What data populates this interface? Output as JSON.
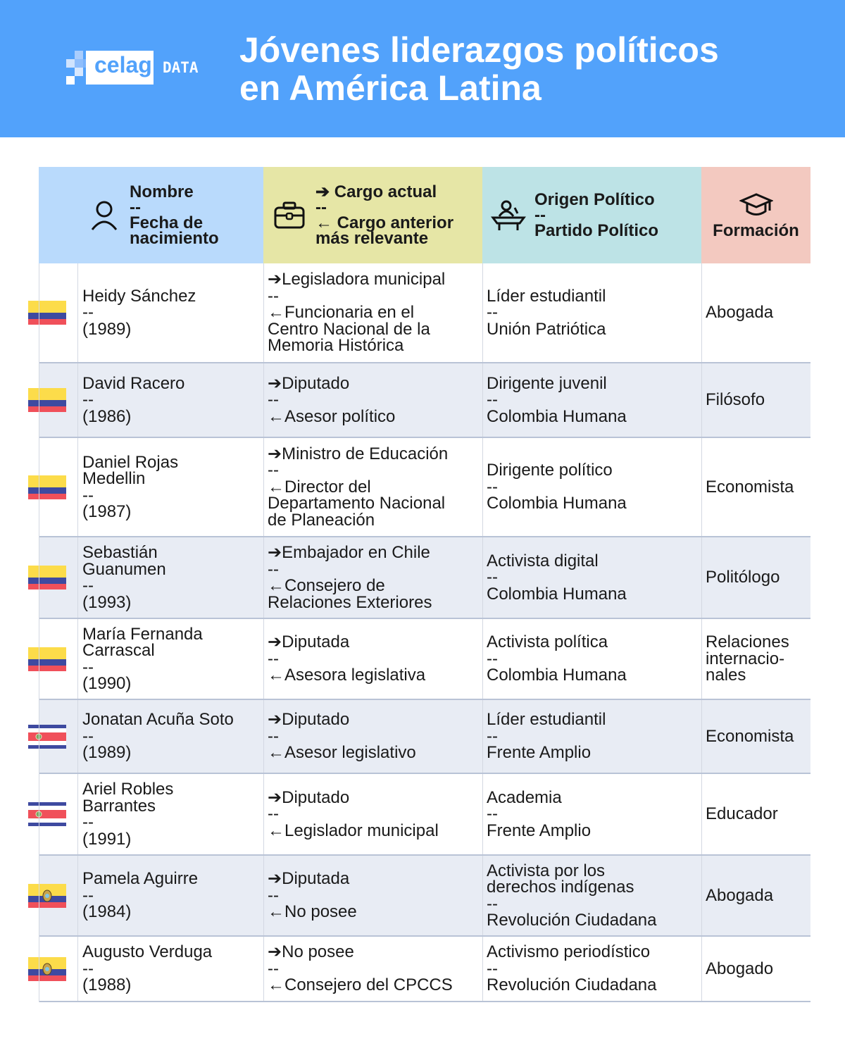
{
  "logo": {
    "word": "celag",
    "suffix": "DATA"
  },
  "title": [
    "Jóvenes liderazgos políticos",
    "en América Latina"
  ],
  "colors": {
    "banner": "#52a2fb",
    "col_name": "#b9dafc",
    "col_cargo": "#e6e6a6",
    "col_origen": "#bde3e6",
    "col_formacion": "#f3c9c0",
    "row_alt": "#e8ecf4"
  },
  "headers": {
    "name": {
      "icon": "person-icon",
      "lines": [
        "Nombre",
        "--",
        "Fecha de",
        "nacimiento"
      ]
    },
    "cargo": {
      "icon": "briefcase-icon",
      "lines": [
        "➔ Cargo actual",
        "--",
        "← Cargo anterior",
        "más relevante"
      ]
    },
    "origen": {
      "icon": "podium-speaker-icon",
      "lines": [
        "Origen Político",
        "--",
        "Partido Político"
      ]
    },
    "formacion": {
      "icon": "graduation-cap-icon",
      "lines": [
        "Formación"
      ]
    }
  },
  "rows": [
    {
      "flag": "colombia",
      "name": [
        "Heidy Sánchez",
        "--",
        "(1989)"
      ],
      "cargo": [
        "➔Legisladora municipal",
        "--",
        "←Funcionaria en el",
        "Centro Nacional de la",
        "Memoria Histórica"
      ],
      "origen": [
        "Líder estudiantil",
        "--",
        "Unión Patriótica"
      ],
      "formacion": [
        "Abogada"
      ]
    },
    {
      "flag": "colombia",
      "name": [
        "David Racero",
        "--",
        "(1986)"
      ],
      "cargo": [
        "➔Diputado",
        "--",
        "←Asesor político"
      ],
      "origen": [
        "Dirigente juvenil",
        "--",
        "Colombia Humana"
      ],
      "formacion": [
        "Filósofo"
      ]
    },
    {
      "flag": "colombia",
      "name": [
        "Daniel Rojas",
        "Medellin",
        "--",
        "(1987)"
      ],
      "cargo": [
        "➔Ministro de Educación",
        "--",
        "←Director del",
        "Departamento Nacional",
        "de Planeación"
      ],
      "origen": [
        "Dirigente político",
        "--",
        "Colombia Humana"
      ],
      "formacion": [
        "Economista"
      ]
    },
    {
      "flag": "colombia",
      "name": [
        "Sebastián",
        "Guanumen",
        "--",
        "(1993)"
      ],
      "cargo": [
        "➔Embajador en Chile",
        "--",
        "←Consejero de",
        "Relaciones Exteriores"
      ],
      "origen": [
        "Activista digital",
        "--",
        "Colombia Humana"
      ],
      "formacion": [
        "Politólogo"
      ]
    },
    {
      "flag": "colombia",
      "name": [
        "María Fernanda",
        "Carrascal",
        "--",
        "(1990)"
      ],
      "cargo": [
        "➔Diputada",
        "--",
        "←Asesora legislativa"
      ],
      "origen": [
        "Activista política",
        "--",
        "Colombia Humana"
      ],
      "formacion": [
        "Relaciones",
        "internacio-",
        "nales"
      ]
    },
    {
      "flag": "costa-rica",
      "name": [
        "Jonatan Acuña Soto",
        "--",
        "(1989)"
      ],
      "cargo": [
        "➔Diputado",
        "--",
        "←Asesor legislativo"
      ],
      "origen": [
        "Líder estudiantil",
        "--",
        "Frente Amplio"
      ],
      "formacion": [
        "Economista"
      ]
    },
    {
      "flag": "costa-rica",
      "name": [
        "Ariel Robles",
        "Barrantes",
        "--",
        "(1991)"
      ],
      "cargo": [
        "➔Diputado",
        "--",
        "←Legislador municipal"
      ],
      "origen": [
        "Academia",
        "--",
        "Frente Amplio"
      ],
      "formacion": [
        "Educador"
      ]
    },
    {
      "flag": "ecuador",
      "name": [
        "Pamela Aguirre",
        "--",
        "(1984)"
      ],
      "cargo": [
        "➔Diputada",
        "--",
        "←No posee"
      ],
      "origen": [
        "Activista por los",
        "derechos indígenas",
        "--",
        "Revolución Ciudadana"
      ],
      "formacion": [
        "Abogada"
      ]
    },
    {
      "flag": "ecuador",
      "name": [
        "Augusto Verduga",
        "--",
        "(1988)"
      ],
      "cargo": [
        "➔No posee",
        "--",
        "←Consejero del CPCCS"
      ],
      "origen": [
        "Activismo periodístico",
        "--",
        "Revolución Ciudadana"
      ],
      "formacion": [
        "Abogado"
      ]
    }
  ]
}
